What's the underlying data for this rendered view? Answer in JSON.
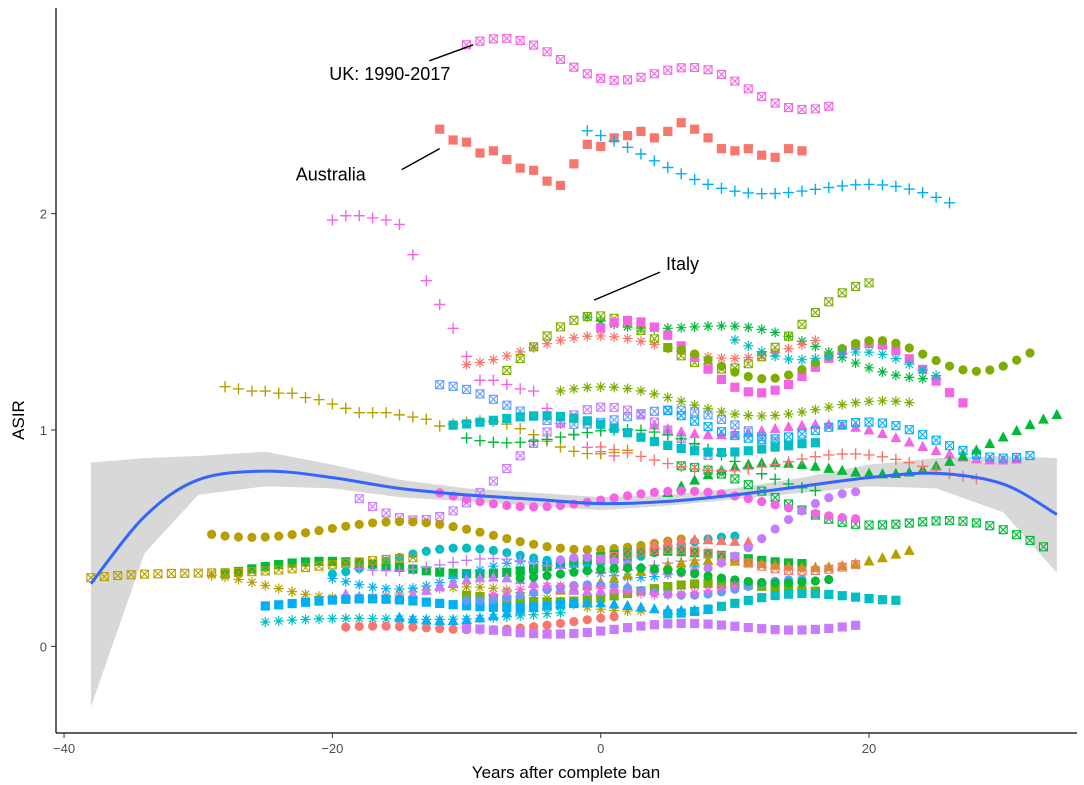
{
  "chart_data": {
    "type": "scatter",
    "title": "",
    "xlabel": "Years after complete ban",
    "ylabel": "ASIR",
    "xlim": [
      -40.6,
      35.5
    ],
    "ylim": [
      -0.4,
      2.95
    ],
    "x_ticks": [
      -40,
      -20,
      0,
      20
    ],
    "y_ticks": [
      0,
      1,
      2
    ],
    "x_tick_labels": [
      "−40",
      "−20",
      "0",
      "20"
    ],
    "y_tick_labels": [
      "0",
      "1",
      "2"
    ],
    "legend": "none",
    "grid": false,
    "colors": {
      "smooth_line": "#3366ff",
      "ribbon": "#d6d6d6",
      "axis": "#000000"
    },
    "annotations": [
      {
        "text": "UK: 1990-2017",
        "x": -9.5,
        "y": 2.78
      },
      {
        "text": "Australia",
        "x": -12.0,
        "y": 2.3
      },
      {
        "text": "Italy",
        "x": -0.5,
        "y": 1.6
      }
    ],
    "smooth": {
      "name": "",
      "x": [
        -38,
        -34,
        -30,
        -25,
        -20,
        -15,
        -10,
        -5,
        0,
        5,
        10,
        15,
        20,
        25,
        30,
        34
      ],
      "y": [
        0.29,
        0.6,
        0.77,
        0.81,
        0.78,
        0.73,
        0.7,
        0.68,
        0.66,
        0.67,
        0.7,
        0.74,
        0.78,
        0.8,
        0.75,
        0.61
      ],
      "ribbon_low": [
        -0.28,
        0.43,
        0.7,
        0.74,
        0.73,
        0.69,
        0.67,
        0.65,
        0.63,
        0.65,
        0.68,
        0.71,
        0.74,
        0.73,
        0.62,
        0.34
      ],
      "ribbon_high": [
        0.85,
        0.87,
        0.88,
        0.9,
        0.84,
        0.77,
        0.73,
        0.71,
        0.69,
        0.7,
        0.73,
        0.78,
        0.84,
        0.87,
        0.88,
        0.87
      ]
    },
    "series": [
      {
        "color": "#f564e3",
        "shape": "square-x",
        "x_start": -10,
        "x_end": 17,
        "y_start": 2.78,
        "y_end": 2.52,
        "wave": 0.06,
        "freq": 0.45
      },
      {
        "color": "#f8766d",
        "shape": "square",
        "x_start": -12,
        "x_end": 15,
        "y": [
          2.39,
          2.34,
          2.33,
          2.28,
          2.29,
          2.25,
          2.21,
          2.2,
          2.15,
          2.13,
          2.23,
          2.32,
          2.31,
          2.35,
          2.36,
          2.38,
          2.35,
          2.38,
          2.42,
          2.39,
          2.35,
          2.3,
          2.29,
          2.3,
          2.27,
          2.26,
          2.3,
          2.29
        ]
      },
      {
        "color": "#00b0f6",
        "shape": "plus",
        "x_start": -1,
        "x_end": 26,
        "y_start": 2.31,
        "y_end": 2.0,
        "wave": 0.08,
        "freq": 0.25
      },
      {
        "color": "#f564e3",
        "shape": "plus",
        "x_start": -20,
        "x_end": 1,
        "y": [
          1.97,
          1.99,
          1.99,
          1.98,
          1.97,
          1.95,
          1.81,
          1.69,
          1.58,
          1.47,
          1.34,
          1.23,
          1.23,
          1.21,
          1.19,
          1.18,
          1.1,
          1.03,
          0.98,
          0.92,
          0.9,
          0.88
        ]
      },
      {
        "color": "#00ba38",
        "shape": "asterisk",
        "x_start": -1,
        "x_end": 25,
        "y_start": 1.56,
        "y_end": 1.27,
        "wave": 0.05,
        "freq": 0.3
      },
      {
        "color": "#f8766d",
        "shape": "asterisk",
        "x_start": -10,
        "x_end": 16,
        "y_start": 1.36,
        "y_end": 1.4,
        "wave": 0.06,
        "freq": 0.3
      },
      {
        "color": "#7cae00",
        "shape": "square-x",
        "x_start": -7,
        "x_end": 20,
        "y_start": 1.32,
        "y_end": 1.52,
        "wave": 0.16,
        "freq": 0.3
      },
      {
        "color": "#f564e3",
        "shape": "square",
        "x_start": 0,
        "x_end": 27,
        "y_start": 1.38,
        "y_end": 1.22,
        "wave": 0.14,
        "freq": 0.35
      },
      {
        "color": "#7cae00",
        "shape": "circle",
        "x_start": 5,
        "x_end": 32,
        "y_start": 1.3,
        "y_end": 1.36,
        "wave": 0.08,
        "freq": 0.4
      },
      {
        "color": "#00bfc4",
        "shape": "asterisk",
        "x_start": 10,
        "x_end": 25,
        "y_start": 1.4,
        "y_end": 1.28,
        "wave": 0.04,
        "freq": 0.5
      },
      {
        "color": "#f564e3",
        "shape": "triangle",
        "x_start": 4,
        "x_end": 31,
        "y_start": 1.05,
        "y_end": 0.9,
        "wave": 0.05,
        "freq": 0.3
      },
      {
        "color": "#b79f00",
        "shape": "plus",
        "x_start": -28,
        "x_end": -13,
        "y": [
          1.2,
          1.19,
          1.18,
          1.18,
          1.17,
          1.17,
          1.15,
          1.14,
          1.12,
          1.1,
          1.08,
          1.08,
          1.08,
          1.07,
          1.06,
          1.05
        ]
      },
      {
        "color": "#b79f00",
        "shape": "plus",
        "x_start": -12,
        "x_end": 2,
        "y_start": 1.04,
        "y_end": 0.9,
        "wave": 0.04,
        "freq": 0.5
      },
      {
        "color": "#7cae00",
        "shape": "asterisk",
        "x_start": -3,
        "x_end": 23,
        "y_start": 1.16,
        "y_end": 1.08,
        "wave": 0.05,
        "freq": 0.3
      },
      {
        "color": "#619cff",
        "shape": "square-x",
        "x_start": -12,
        "x_end": 14,
        "y_start": 1.15,
        "y_end": 0.98,
        "wave": 0.06,
        "freq": 0.35
      },
      {
        "color": "#00b0f6",
        "shape": "square-x",
        "x_start": 5,
        "x_end": 32,
        "y_start": 1.05,
        "y_end": 0.92,
        "wave": 0.06,
        "freq": 0.35
      },
      {
        "color": "#c77cff",
        "shape": "square-x",
        "x_start": -18,
        "x_end": 8,
        "y_start": 0.74,
        "y_end": 0.98,
        "wave": 0.2,
        "freq": 0.25
      },
      {
        "color": "#00ba38",
        "shape": "plus",
        "x_start": -10,
        "x_end": 16,
        "y_start": 1.04,
        "y_end": 0.8,
        "wave": 0.08,
        "freq": 0.25
      },
      {
        "color": "#00bfc4",
        "shape": "square",
        "x_start": -11,
        "x_end": 16,
        "y_start": 1.06,
        "y_end": 0.9,
        "wave": 0.05,
        "freq": 0.3
      },
      {
        "color": "#00ba38",
        "shape": "triangle",
        "x_start": 5,
        "x_end": 34,
        "y_start": 0.7,
        "y_end": 1.0,
        "wave": 0.08,
        "freq": 0.25
      },
      {
        "color": "#00ba38",
        "shape": "square-x",
        "x_start": 6,
        "x_end": 33,
        "y_start": 0.78,
        "y_end": 0.45,
        "wave": 0.06,
        "freq": 0.3
      },
      {
        "color": "#f8766d",
        "shape": "plus",
        "x_start": 0,
        "x_end": 28,
        "y_start": 0.88,
        "y_end": 0.82,
        "wave": 0.05,
        "freq": 0.3
      },
      {
        "color": "#f564e3",
        "shape": "circle",
        "x_start": -12,
        "x_end": 19,
        "y_start": 0.71,
        "y_end": 0.64,
        "wave": 0.05,
        "freq": 0.25
      },
      {
        "color": "#b79f00",
        "shape": "circle",
        "x_start": -29,
        "x_end": 6,
        "y_start": 0.56,
        "y_end": 0.48,
        "wave": 0.05,
        "freq": 0.25
      },
      {
        "color": "#00bfc4",
        "shape": "circle",
        "x_start": -20,
        "x_end": 10,
        "y_start": 0.38,
        "y_end": 0.46,
        "wave": 0.05,
        "freq": 0.3
      },
      {
        "color": "#00ba38",
        "shape": "square",
        "x_start": -28,
        "x_end": 15,
        "y_start": 0.34,
        "y_end": 0.42,
        "wave": 0.04,
        "freq": 0.25
      },
      {
        "color": "#b79f00",
        "shape": "square-x",
        "x_start": -38,
        "x_end": -14,
        "y_start": 0.31,
        "y_end": 0.4,
        "wave": 0.01,
        "freq": 0.3
      },
      {
        "color": "#b79f00",
        "shape": "asterisk",
        "x_start": -29,
        "x_end": 3,
        "y_start": 0.29,
        "y_end": 0.2,
        "wave": 0.04,
        "freq": 0.3
      },
      {
        "color": "#00b0f6",
        "shape": "asterisk",
        "x_start": -20,
        "x_end": 7,
        "y_start": 0.3,
        "y_end": 0.38,
        "wave": 0.05,
        "freq": 0.35
      },
      {
        "color": "#c77cff",
        "shape": "plus",
        "x_start": -18,
        "x_end": 7,
        "y_start": 0.38,
        "y_end": 0.37,
        "wave": 0.03,
        "freq": 0.4
      },
      {
        "color": "#b79f00",
        "shape": "triangle",
        "x_start": -3,
        "x_end": 23,
        "y_start": 0.3,
        "y_end": 0.44,
        "wave": 0.04,
        "freq": 0.3
      },
      {
        "color": "#f8766d",
        "shape": "square-x",
        "x_start": 0,
        "x_end": 19,
        "y_start": 0.42,
        "y_end": 0.38,
        "wave": 0.04,
        "freq": 0.35
      },
      {
        "color": "#f8766d",
        "shape": "triangle",
        "x_start": 4,
        "x_end": 11,
        "y_start": 0.46,
        "y_end": 0.5,
        "wave": 0.02,
        "freq": 0.5
      },
      {
        "color": "#c77cff",
        "shape": "circle",
        "x_start": -3,
        "x_end": 19,
        "y_start": 0.3,
        "y_end": 0.62,
        "wave": 0.1,
        "freq": 0.3
      },
      {
        "color": "#7cae00",
        "shape": "square",
        "x_start": -10,
        "x_end": 16,
        "y_start": 0.22,
        "y_end": 0.28,
        "wave": 0.03,
        "freq": 0.3
      },
      {
        "color": "#c77cff",
        "shape": "triangle",
        "x_start": -19,
        "x_end": 2,
        "y_start": 0.26,
        "y_end": 0.3,
        "wave": 0.04,
        "freq": 0.4
      },
      {
        "color": "#00bfc4",
        "shape": "square",
        "x_start": 5,
        "x_end": 22,
        "y_start": 0.18,
        "y_end": 0.24,
        "wave": 0.03,
        "freq": 0.35
      },
      {
        "color": "#00b0f6",
        "shape": "square",
        "x_start": -25,
        "x_end": -2,
        "y_start": 0.2,
        "y_end": 0.2,
        "wave": 0.02,
        "freq": 0.3
      },
      {
        "color": "#00bfc4",
        "shape": "asterisk",
        "x_start": -25,
        "x_end": -3,
        "y_start": 0.11,
        "y_end": 0.15,
        "wave": 0.01,
        "freq": 0.3
      },
      {
        "color": "#f8766d",
        "shape": "circle",
        "x_start": -19,
        "x_end": 1,
        "y_start": 0.07,
        "y_end": 0.12,
        "wave": 0.02,
        "freq": 0.3
      },
      {
        "color": "#c77cff",
        "shape": "square",
        "x_start": -10,
        "x_end": 19,
        "y_start": 0.07,
        "y_end": 0.1,
        "wave": 0.02,
        "freq": 0.35
      },
      {
        "color": "#00b0f6",
        "shape": "triangle",
        "x_start": -15,
        "x_end": 8,
        "y_start": 0.14,
        "y_end": 0.2,
        "wave": 0.03,
        "freq": 0.35
      },
      {
        "color": "#619cff",
        "shape": "circle",
        "x_start": -10,
        "x_end": 15,
        "y_start": 0.24,
        "y_end": 0.28,
        "wave": 0.03,
        "freq": 0.4
      },
      {
        "color": "#00ba38",
        "shape": "circle",
        "x_start": -6,
        "x_end": 17,
        "y_start": 0.34,
        "y_end": 0.32,
        "wave": 0.03,
        "freq": 0.3
      },
      {
        "color": "#f564e3",
        "shape": "asterisk",
        "x_start": -8,
        "x_end": 10,
        "y_start": 0.24,
        "y_end": 0.28,
        "wave": 0.03,
        "freq": 0.35
      }
    ]
  }
}
